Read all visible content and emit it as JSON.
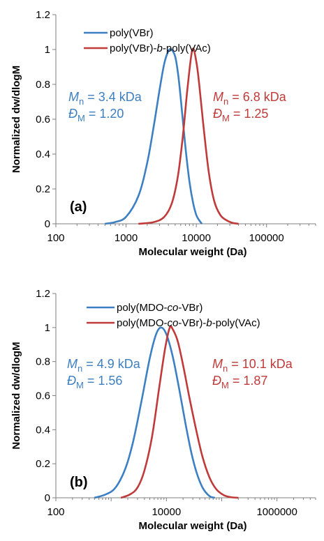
{
  "colors": {
    "blue": "#3c7fc2",
    "red": "#c03a3a",
    "axis": "#7f7f7f"
  },
  "chart_data": [
    {
      "type": "line",
      "panel_label": "(a)",
      "xlabel": "Molecular weight (Da)",
      "ylabel": "Normalized dw/dlogM",
      "xscale": "log",
      "xlim": [
        100,
        500000
      ],
      "ylim": [
        0,
        1.2
      ],
      "xticks": [
        100,
        1000,
        10000,
        100000
      ],
      "xtick_labels": [
        "100",
        "1000",
        "10000",
        "100000"
      ],
      "yticks": [
        0,
        0.2,
        0.4,
        0.6,
        0.8,
        1.0,
        1.2
      ],
      "ytick_labels": [
        "0",
        "0.2",
        "0.4",
        "0.6",
        "0.8",
        "1",
        "1.2"
      ],
      "legend_position": "top-left",
      "series": [
        {
          "legend_parts": [
            {
              "t": "poly(VBr)",
              "i": false
            }
          ],
          "color": "blue",
          "x": [
            500,
            700,
            1000,
            1500,
            2000,
            2500,
            3000,
            3500,
            4000,
            4400,
            5000,
            5500,
            6000,
            7000,
            8000,
            9000,
            10000,
            11000,
            12000
          ],
          "y": [
            0.0,
            0.01,
            0.04,
            0.16,
            0.35,
            0.57,
            0.77,
            0.92,
            0.99,
            1.0,
            0.96,
            0.86,
            0.72,
            0.44,
            0.24,
            0.12,
            0.05,
            0.02,
            0.0
          ]
        },
        {
          "legend_parts": [
            {
              "t": "poly(VBr)-",
              "i": false
            },
            {
              "t": "b",
              "i": true
            },
            {
              "t": "-poly(VAc)",
              "i": false
            }
          ],
          "color": "red",
          "x": [
            1500,
            2500,
            3500,
            4500,
            5500,
            6500,
            7500,
            8800,
            10000,
            11000,
            12500,
            15000,
            18000,
            22000,
            27000,
            33000,
            40000
          ],
          "y": [
            0.0,
            0.01,
            0.04,
            0.12,
            0.28,
            0.52,
            0.78,
            1.0,
            0.93,
            0.8,
            0.58,
            0.3,
            0.13,
            0.05,
            0.02,
            0.005,
            0.0
          ]
        }
      ],
      "annotations": [
        {
          "color": "blue",
          "lines": [
            [
              {
                "t": "M",
                "i": true
              },
              {
                "t": "n",
                "sub": true
              },
              {
                "t": " = 3.4 kDa"
              }
            ],
            [
              {
                "t": "Đ",
                "i": true
              },
              {
                "t": "M",
                "sub": true
              },
              {
                "t": " = 1.20"
              }
            ]
          ]
        },
        {
          "color": "red",
          "lines": [
            [
              {
                "t": "M",
                "i": true
              },
              {
                "t": "n",
                "sub": true
              },
              {
                "t": " = 6.8 kDa"
              }
            ],
            [
              {
                "t": "Đ",
                "i": true
              },
              {
                "t": "M",
                "sub": true
              },
              {
                "t": " = 1.25"
              }
            ]
          ]
        }
      ]
    },
    {
      "type": "line",
      "panel_label": "(b)",
      "xlabel": "Molecular weight (Da)",
      "ylabel": "Normalized dw/dlogM",
      "xscale": "log",
      "xlim": [
        100,
        5000000
      ],
      "ylim": [
        0,
        1.2
      ],
      "xticks": [
        100,
        10000,
        1000000
      ],
      "xtick_labels": [
        "100",
        "10000",
        "1000000"
      ],
      "yticks": [
        0,
        0.2,
        0.4,
        0.6,
        0.8,
        1.0,
        1.2
      ],
      "ytick_labels": [
        "0",
        "0.2",
        "0.4",
        "0.6",
        "0.8",
        "1",
        "1.2"
      ],
      "legend_position": "top-left",
      "series": [
        {
          "legend_parts": [
            {
              "t": "poly(MDO-",
              "i": false
            },
            {
              "t": "co",
              "i": true
            },
            {
              "t": "-VBr)",
              "i": false
            }
          ],
          "color": "blue",
          "x": [
            500,
            800,
            1200,
            1800,
            2500,
            3500,
            5000,
            6500,
            8000,
            10000,
            13000,
            17000,
            22000,
            28000,
            35000,
            45000,
            60000,
            75000
          ],
          "y": [
            0.0,
            0.02,
            0.06,
            0.17,
            0.33,
            0.56,
            0.82,
            0.96,
            1.0,
            0.96,
            0.83,
            0.64,
            0.44,
            0.27,
            0.15,
            0.06,
            0.01,
            0.0
          ]
        },
        {
          "legend_parts": [
            {
              "t": "poly(MDO-",
              "i": false
            },
            {
              "t": "co",
              "i": true
            },
            {
              "t": "-VBr)-",
              "i": false
            },
            {
              "t": "b",
              "i": true
            },
            {
              "t": "-poly(VAc)",
              "i": false
            }
          ],
          "color": "red",
          "x": [
            1500,
            2200,
            3000,
            4000,
            5500,
            7500,
            9500,
            11500,
            13000,
            16000,
            20000,
            26000,
            35000,
            45000,
            60000,
            80000,
            110000,
            150000,
            200000
          ],
          "y": [
            0.0,
            0.02,
            0.06,
            0.16,
            0.36,
            0.66,
            0.88,
            1.0,
            0.99,
            0.92,
            0.78,
            0.59,
            0.39,
            0.24,
            0.12,
            0.05,
            0.015,
            0.003,
            0.0
          ]
        }
      ],
      "annotations": [
        {
          "color": "blue",
          "lines": [
            [
              {
                "t": "M",
                "i": true
              },
              {
                "t": "n",
                "sub": true
              },
              {
                "t": " = 4.9 kDa"
              }
            ],
            [
              {
                "t": "Đ",
                "i": true
              },
              {
                "t": "M",
                "sub": true
              },
              {
                "t": " = 1.56"
              }
            ]
          ]
        },
        {
          "color": "red",
          "lines": [
            [
              {
                "t": "M",
                "i": true
              },
              {
                "t": "n",
                "sub": true
              },
              {
                "t": " = 10.1 kDa"
              }
            ],
            [
              {
                "t": "Đ",
                "i": true
              },
              {
                "t": "M",
                "sub": true
              },
              {
                "t": " = 1.87"
              }
            ]
          ]
        }
      ]
    }
  ]
}
